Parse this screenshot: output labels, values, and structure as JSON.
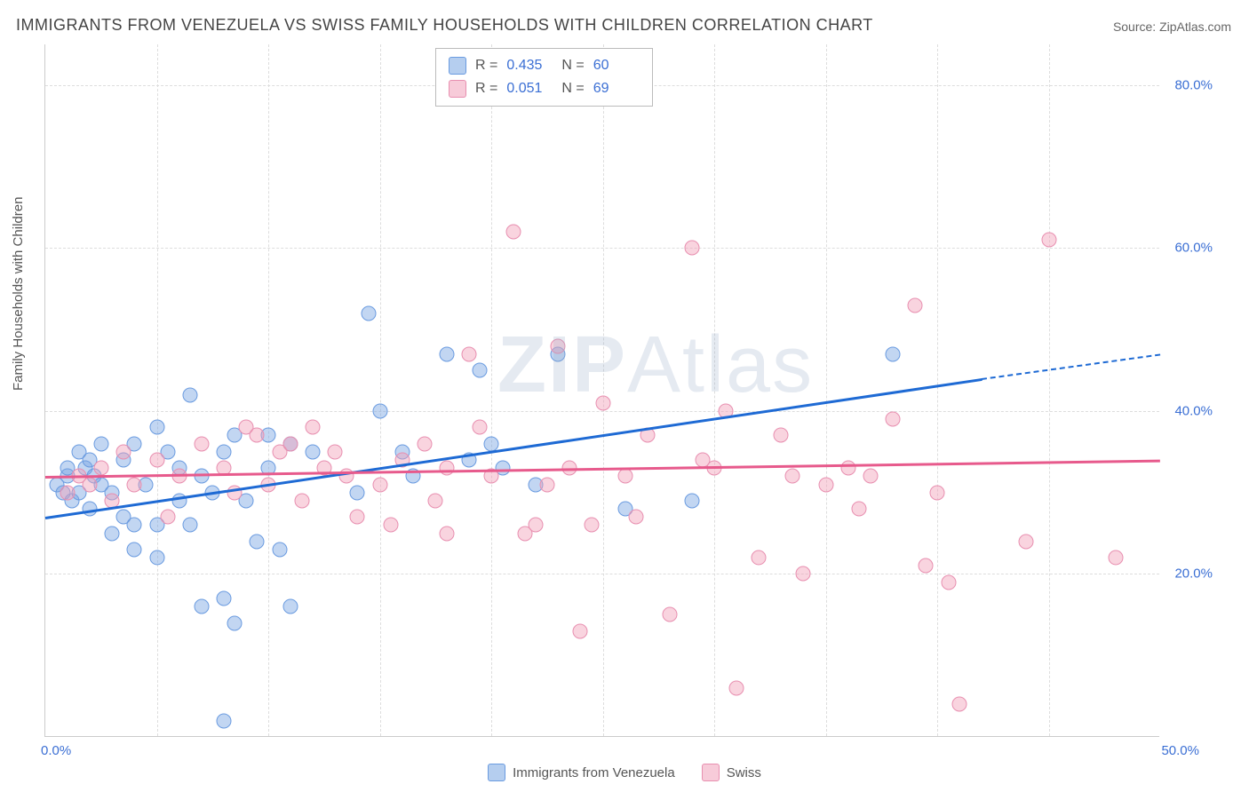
{
  "title": "IMMIGRANTS FROM VENEZUELA VS SWISS FAMILY HOUSEHOLDS WITH CHILDREN CORRELATION CHART",
  "source": "Source: ZipAtlas.com",
  "ylabel": "Family Households with Children",
  "watermark_prefix": "ZIP",
  "watermark_suffix": "Atlas",
  "chart": {
    "type": "scatter",
    "xlim": [
      0,
      50
    ],
    "ylim": [
      0,
      85
    ],
    "xticks": [
      {
        "v": 0,
        "label": "0.0%"
      },
      {
        "v": 50,
        "label": "50.0%"
      }
    ],
    "yticks": [
      {
        "v": 20,
        "label": "20.0%"
      },
      {
        "v": 40,
        "label": "40.0%"
      },
      {
        "v": 60,
        "label": "60.0%"
      },
      {
        "v": 80,
        "label": "80.0%"
      }
    ],
    "grid_color": "#dddddd",
    "background_color": "#ffffff",
    "point_radius": 8.5,
    "series": [
      {
        "name": "Immigrants from Venezuela",
        "color_fill": "rgba(120,165,226,0.45)",
        "color_stroke": "#6a9be0",
        "class": "blue",
        "R": "0.435",
        "N": "60",
        "trend": {
          "x0": 0,
          "y0": 27,
          "x1": 42,
          "y1": 44,
          "color": "#1e6ad4",
          "dash_x1": 50,
          "dash_y1": 47
        },
        "points": [
          [
            0.5,
            31
          ],
          [
            0.8,
            30
          ],
          [
            1,
            32
          ],
          [
            1,
            33
          ],
          [
            1.2,
            29
          ],
          [
            1.5,
            35
          ],
          [
            1.5,
            30
          ],
          [
            1.8,
            33
          ],
          [
            2,
            34
          ],
          [
            2,
            28
          ],
          [
            2.2,
            32
          ],
          [
            2.5,
            31
          ],
          [
            2.5,
            36
          ],
          [
            3,
            30
          ],
          [
            3,
            25
          ],
          [
            3.5,
            34
          ],
          [
            3.5,
            27
          ],
          [
            4,
            23
          ],
          [
            4,
            36
          ],
          [
            4,
            26
          ],
          [
            4.5,
            31
          ],
          [
            5,
            38
          ],
          [
            5,
            26
          ],
          [
            5,
            22
          ],
          [
            5.5,
            35
          ],
          [
            6,
            33
          ],
          [
            6,
            29
          ],
          [
            6.5,
            42
          ],
          [
            6.5,
            26
          ],
          [
            7,
            16
          ],
          [
            7,
            32
          ],
          [
            7.5,
            30
          ],
          [
            8,
            17
          ],
          [
            8,
            35
          ],
          [
            8.5,
            37
          ],
          [
            8.5,
            14
          ],
          [
            9,
            29
          ],
          [
            9.5,
            24
          ],
          [
            10,
            37
          ],
          [
            10,
            33
          ],
          [
            10.5,
            23
          ],
          [
            11,
            36
          ],
          [
            11,
            16
          ],
          [
            12,
            35
          ],
          [
            14,
            30
          ],
          [
            14.5,
            52
          ],
          [
            15,
            40
          ],
          [
            16,
            35
          ],
          [
            16.5,
            32
          ],
          [
            18,
            47
          ],
          [
            19,
            34
          ],
          [
            19.5,
            45
          ],
          [
            20,
            36
          ],
          [
            20.5,
            33
          ],
          [
            22,
            31
          ],
          [
            23,
            47
          ],
          [
            26,
            28
          ],
          [
            29,
            29
          ],
          [
            38,
            47
          ],
          [
            8,
            2
          ]
        ]
      },
      {
        "name": "Swiss",
        "color_fill": "rgba(241,160,185,0.45)",
        "color_stroke": "#e88fb0",
        "class": "pink",
        "R": "0.051",
        "N": "69",
        "trend": {
          "x0": 0,
          "y0": 32,
          "x1": 50,
          "y1": 34,
          "color": "#e75a8c"
        },
        "points": [
          [
            1,
            30
          ],
          [
            1.5,
            32
          ],
          [
            2,
            31
          ],
          [
            2.5,
            33
          ],
          [
            3,
            29
          ],
          [
            3.5,
            35
          ],
          [
            4,
            31
          ],
          [
            5,
            34
          ],
          [
            5.5,
            27
          ],
          [
            6,
            32
          ],
          [
            7,
            36
          ],
          [
            8,
            33
          ],
          [
            8.5,
            30
          ],
          [
            9,
            38
          ],
          [
            9.5,
            37
          ],
          [
            10,
            31
          ],
          [
            10.5,
            35
          ],
          [
            11,
            36
          ],
          [
            11.5,
            29
          ],
          [
            12,
            38
          ],
          [
            12.5,
            33
          ],
          [
            13,
            35
          ],
          [
            13.5,
            32
          ],
          [
            14,
            27
          ],
          [
            15,
            31
          ],
          [
            15.5,
            26
          ],
          [
            16,
            34
          ],
          [
            17,
            36
          ],
          [
            17.5,
            29
          ],
          [
            18,
            33
          ],
          [
            19,
            47
          ],
          [
            19.5,
            38
          ],
          [
            20,
            32
          ],
          [
            21,
            62
          ],
          [
            21.5,
            25
          ],
          [
            22,
            26
          ],
          [
            22.5,
            31
          ],
          [
            23,
            48
          ],
          [
            23.5,
            33
          ],
          [
            24,
            13
          ],
          [
            24.5,
            26
          ],
          [
            25,
            41
          ],
          [
            26,
            32
          ],
          [
            26.5,
            27
          ],
          [
            27,
            37
          ],
          [
            28,
            15
          ],
          [
            29,
            60
          ],
          [
            29.5,
            34
          ],
          [
            30,
            33
          ],
          [
            30.5,
            40
          ],
          [
            31,
            6
          ],
          [
            32,
            22
          ],
          [
            33,
            37
          ],
          [
            33.5,
            32
          ],
          [
            34,
            20
          ],
          [
            35,
            31
          ],
          [
            36,
            33
          ],
          [
            36.5,
            28
          ],
          [
            37,
            32
          ],
          [
            38,
            39
          ],
          [
            39,
            53
          ],
          [
            39.5,
            21
          ],
          [
            40,
            30
          ],
          [
            40.5,
            19
          ],
          [
            41,
            4
          ],
          [
            44,
            24
          ],
          [
            45,
            61
          ],
          [
            48,
            22
          ],
          [
            18,
            25
          ]
        ]
      }
    ]
  },
  "bottom_legend": [
    {
      "class": "blue",
      "label": "Immigrants from Venezuela"
    },
    {
      "class": "pink",
      "label": "Swiss"
    }
  ]
}
